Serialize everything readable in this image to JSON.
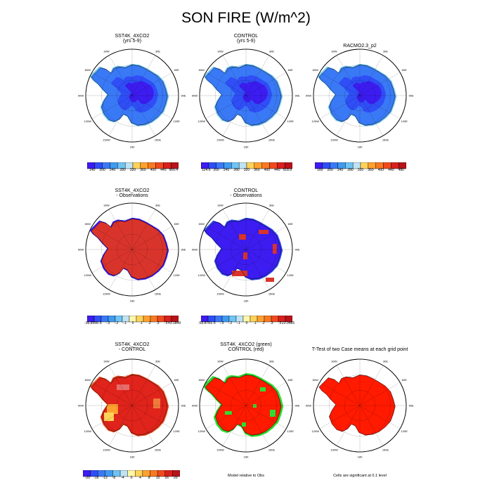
{
  "figure": {
    "title": "SON FIRE (W/m^2)"
  },
  "colors": {
    "scale": [
      "#3c1cf0",
      "#2f4ef6",
      "#3a79f6",
      "#3f9af0",
      "#6fc4f3",
      "#bfe3f4",
      "#fff7a8",
      "#ffd35a",
      "#ffa12f",
      "#f97a22",
      "#f04a1f",
      "#d9201c",
      "#b8131a"
    ],
    "ocean": "#ffffff",
    "significant": "#ff1a00",
    "green_overlay": "#2fdc2f"
  },
  "panels": [
    {
      "id": "p1",
      "title1": "SST4K_4XCO2",
      "title2": "(yrs 5-9)",
      "style": "blue",
      "cb": [
        "140",
        "200",
        "240",
        "280",
        "320",
        "360",
        "400",
        "440",
        "560.4"
      ]
    },
    {
      "id": "p2",
      "title1": "CONTROL",
      "title2": "(yrs 5-9)",
      "style": "blue",
      "cb": [
        "124.6",
        "200",
        "240",
        "280",
        "320",
        "360",
        "400",
        "440",
        "518.9"
      ]
    },
    {
      "id": "p3",
      "title1": "RACMO2.3_p2",
      "title2": "",
      "style": "blue",
      "cb": [
        "160",
        "200",
        "240",
        "280",
        "320",
        "360",
        "400",
        "440",
        "480"
      ]
    },
    {
      "id": "p4",
      "title1": "SST4K_4XCO2",
      "title2": "- Observations",
      "style": "red",
      "cb": [
        "-36.8956",
        "-.5",
        "-.3",
        "-.2",
        "-.1",
        "0",
        ".1",
        ".2",
        ".3",
        ".5",
        "43.1849"
      ]
    },
    {
      "id": "p5",
      "title1": "CONTROL",
      "title2": "- Observations",
      "style": "mixed",
      "cb": [
        "-53.8781",
        "-.5",
        "-.3",
        "-.2",
        "-.1",
        "0",
        ".1",
        ".2",
        ".3",
        ".5",
        "22.0485"
      ]
    },
    {
      "id": "p7",
      "title1": "SST4K_4XCO2",
      "title2": "- CONTROL",
      "style": "diff",
      "cb": [
        "-20",
        "-16",
        "-12",
        "-8",
        "-4",
        "0",
        "4",
        "8",
        "12",
        "16",
        "20"
      ]
    },
    {
      "id": "p8",
      "title1": "SST4K_4XCO2 (green)",
      "title2": "CONTROL (red)",
      "style": "green",
      "note": "Model relative to Obs"
    },
    {
      "id": "p9",
      "title1": "T-Test of two Case means at each grid point",
      "title2": "",
      "style": "ttest",
      "note": "Cells are significant at 0.1 level"
    }
  ],
  "longitude_labels": [
    "30W",
    "30E",
    "60W",
    "60E",
    "90W",
    "90E",
    "120W",
    "120E",
    "150W",
    "150E",
    "180"
  ],
  "chart_data": [
    {
      "type": "heatmap",
      "title": "SST4K_4XCO2 (yrs 5-9)",
      "colorbar": [
        140,
        200,
        240,
        280,
        320,
        360,
        400,
        440,
        560.4
      ],
      "range": [
        140,
        560.4
      ]
    },
    {
      "type": "heatmap",
      "title": "CONTROL (yrs 5-9)",
      "colorbar": [
        124.6,
        200,
        240,
        280,
        320,
        360,
        400,
        440,
        518.9
      ],
      "range": [
        124.6,
        518.9
      ]
    },
    {
      "type": "heatmap",
      "title": "RACMO2.3_p2",
      "colorbar": [
        160,
        200,
        240,
        280,
        320,
        360,
        400,
        440,
        480
      ]
    },
    {
      "type": "heatmap",
      "title": "SST4K_4XCO2 - Observations",
      "colorbar": [
        -36.8956,
        -0.5,
        -0.3,
        -0.2,
        -0.1,
        0,
        0.1,
        0.2,
        0.3,
        0.5,
        43.1849
      ]
    },
    {
      "type": "heatmap",
      "title": "CONTROL - Observations",
      "colorbar": [
        -53.8781,
        -0.5,
        -0.3,
        -0.2,
        -0.1,
        0,
        0.1,
        0.2,
        0.3,
        0.5,
        22.0485
      ]
    },
    {
      "type": "heatmap",
      "title": "SST4K_4XCO2 - CONTROL",
      "colorbar": [
        -20,
        -16,
        -12,
        -8,
        -4,
        0,
        4,
        8,
        12,
        16,
        20
      ]
    },
    {
      "type": "heatmap",
      "title": "SST4K_4XCO2 (green) CONTROL (red)",
      "note": "Model relative to Obs"
    },
    {
      "type": "heatmap",
      "title": "T-Test of two Case means at each grid point",
      "note": "Cells are significant at 0.1 level"
    }
  ]
}
